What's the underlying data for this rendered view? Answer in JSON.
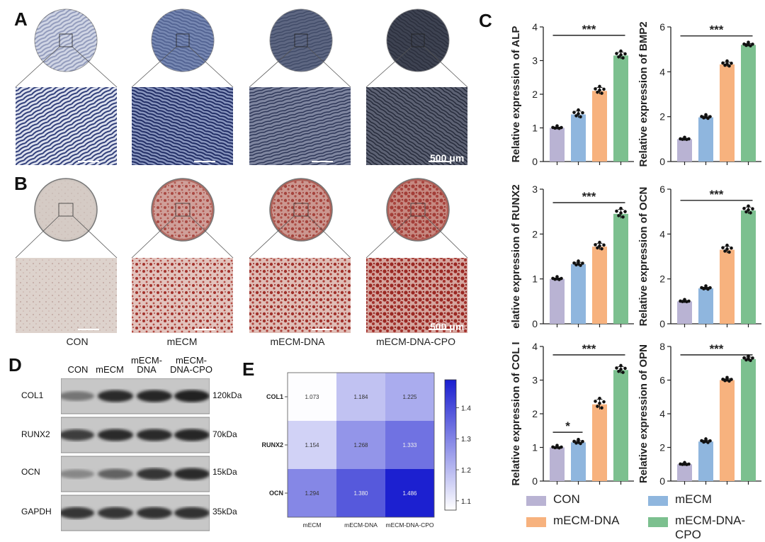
{
  "panels": {
    "a": "A",
    "b": "B",
    "c": "C",
    "d": "D",
    "e": "E"
  },
  "scale_bar": "500 μm",
  "groups": [
    "CON",
    "mECM",
    "mECM-DNA",
    "mECM-DNA-CPO"
  ],
  "colors": {
    "CON": "#b9b3d3",
    "mECM": "#8fb6de",
    "mECM-DNA": "#f7b27e",
    "mECM-DNA-CPO": "#7cc08f",
    "alp_dish": [
      "#c9cfe0",
      "#6f82ad",
      "#4c5772",
      "#2e323f"
    ],
    "ars_dish": [
      "#cfc6c0",
      "#b26a62",
      "#ad5f56",
      "#b05e56"
    ]
  },
  "western_blot": {
    "header": [
      "CON",
      "mECM",
      "mECM-\nDNA",
      "mECM-\nDNA-CPO"
    ],
    "bands": [
      {
        "protein": "COL1",
        "kda": "120kDa",
        "intensity": [
          0.45,
          0.85,
          0.88,
          0.9
        ]
      },
      {
        "protein": "RUNX2",
        "kda": "70kDa",
        "intensity": [
          0.75,
          0.85,
          0.85,
          0.88
        ]
      },
      {
        "protein": "OCN",
        "kda": "15kDa",
        "intensity": [
          0.35,
          0.55,
          0.8,
          0.85
        ]
      },
      {
        "protein": "GAPDH",
        "kda": "35kDa",
        "intensity": [
          0.8,
          0.8,
          0.82,
          0.82
        ]
      }
    ]
  },
  "chart_data": [
    {
      "type": "bar",
      "ylabel": "Relative expression of ALP",
      "ylim": [
        0,
        4
      ],
      "yticks": [
        0,
        1,
        2,
        3,
        4
      ],
      "categories": [
        "CON",
        "mECM",
        "mECM-DNA",
        "mECM-DNA-CPO"
      ],
      "values": [
        1.0,
        1.4,
        2.1,
        3.15
      ],
      "errors": [
        0.02,
        0.1,
        0.1,
        0.1
      ],
      "annotations": [
        {
          "from": 0,
          "to": 3,
          "y": 3.75,
          "text": "***"
        }
      ]
    },
    {
      "type": "bar",
      "ylabel": "Relative expression of BMP2",
      "ylim": [
        0,
        6
      ],
      "yticks": [
        0,
        2,
        4,
        6
      ],
      "categories": [
        "CON",
        "mECM",
        "mECM-DNA",
        "mECM-DNA-CPO"
      ],
      "values": [
        1.0,
        1.97,
        4.33,
        5.2
      ],
      "errors": [
        0.02,
        0.06,
        0.1,
        0.06
      ],
      "annotations": [
        {
          "from": 0,
          "to": 3,
          "y": 5.6,
          "text": "***"
        }
      ]
    },
    {
      "type": "bar",
      "ylabel": "elative expression of RUNX2",
      "ylim": [
        0,
        3
      ],
      "yticks": [
        0,
        1,
        2,
        3
      ],
      "categories": [
        "CON",
        "mECM",
        "mECM-DNA",
        "mECM-DNA-CPO"
      ],
      "values": [
        1.0,
        1.33,
        1.72,
        2.45
      ],
      "errors": [
        0.02,
        0.04,
        0.07,
        0.1
      ],
      "annotations": [
        {
          "from": 0,
          "to": 3,
          "y": 2.7,
          "text": "***"
        }
      ]
    },
    {
      "type": "bar",
      "ylabel": "Relative expression of OCN",
      "ylim": [
        0,
        6
      ],
      "yticks": [
        0,
        2,
        4,
        6
      ],
      "categories": [
        "CON",
        "mECM",
        "mECM-DNA",
        "mECM-DNA-CPO"
      ],
      "values": [
        1.0,
        1.58,
        3.3,
        5.05
      ],
      "errors": [
        0.02,
        0.05,
        0.15,
        0.15
      ],
      "annotations": [
        {
          "from": 0,
          "to": 3,
          "y": 5.5,
          "text": "***"
        }
      ]
    },
    {
      "type": "bar",
      "ylabel": "Relative expression of COL I",
      "ylim": [
        0,
        4
      ],
      "yticks": [
        0,
        1,
        2,
        3,
        4
      ],
      "categories": [
        "CON",
        "mECM",
        "mECM-DNA",
        "mECM-DNA-CPO"
      ],
      "values": [
        1.0,
        1.15,
        2.28,
        3.3
      ],
      "errors": [
        0.02,
        0.05,
        0.15,
        0.1
      ],
      "annotations": [
        {
          "from": 0,
          "to": 1,
          "y": 1.45,
          "text": "*"
        },
        {
          "from": 0,
          "to": 3,
          "y": 3.75,
          "text": "***"
        }
      ]
    },
    {
      "type": "bar",
      "ylabel": "Relative expression of OPN",
      "ylim": [
        0,
        8
      ],
      "yticks": [
        0,
        2,
        4,
        6,
        8
      ],
      "categories": [
        "CON",
        "mECM",
        "mECM-DNA",
        "mECM-DNA-CPO"
      ],
      "values": [
        1.0,
        2.35,
        6.0,
        7.25
      ],
      "errors": [
        0.02,
        0.08,
        0.08,
        0.12
      ],
      "annotations": [
        {
          "from": 0,
          "to": 3,
          "y": 7.5,
          "text": "***"
        }
      ]
    },
    {
      "type": "heatmap",
      "rows": [
        "COL1",
        "RUNX2",
        "OCN"
      ],
      "columns": [
        "mECM",
        "mECM-DNA",
        "mECM-DNA-CPO"
      ],
      "values": [
        [
          1.073,
          1.184,
          1.225
        ],
        [
          1.154,
          1.268,
          1.333
        ],
        [
          1.294,
          1.38,
          1.486
        ]
      ],
      "colorbar_ticks": [
        1.1,
        1.2,
        1.3,
        1.4
      ],
      "vmin": 1.07,
      "vmax": 1.49
    }
  ]
}
